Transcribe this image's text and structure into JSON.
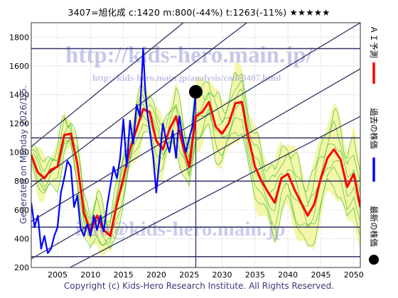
{
  "header": {
    "title": "3407=旭化成  c:1420  m:800(-44%)  t:1263(-11%)  ★★★★★"
  },
  "side_left": {
    "text": "Generated on Monday 2026/1/5."
  },
  "footer": {
    "copyright": "Copyright (c) Kids-Hero Research Institute. All Rights Reserved."
  },
  "watermarks": {
    "url": "http://kids-hero.main.jp/",
    "analysis": "http://kids-hero.main.jp/analysis/code3407.html",
    "email": "info@kids-hero.main.jp"
  },
  "legend": {
    "prediction": "ＡＩ予測",
    "past_price": "過去の株価",
    "latest_price": "最新の株価"
  },
  "colors": {
    "prediction": "#ff0000",
    "past_price": "#0000ff",
    "latest": "#000000",
    "band_fill": "#f2f59a",
    "band_lines": "#33bb33",
    "trend_lines": "#333366"
  },
  "chart_data": {
    "type": "line",
    "xlim": [
      2001,
      2051
    ],
    "ylim": [
      200,
      1900
    ],
    "x_ticks": [
      2005,
      2010,
      2015,
      2020,
      2025,
      2030,
      2035,
      2040,
      2045,
      2050
    ],
    "y_ticks": [
      200,
      400,
      600,
      800,
      1000,
      1200,
      1400,
      1600,
      1800
    ],
    "x_tick_labels": [
      "2005",
      "2010",
      "2015",
      "2020",
      "2025",
      "2030",
      "2035",
      "2040",
      "2045",
      "2050"
    ],
    "y_tick_labels": [
      "200",
      "400",
      "600",
      "800",
      "1000",
      "1200",
      "1400",
      "1600",
      "1800"
    ],
    "horizontal_levels": [
      1720,
      1100,
      800,
      480,
      275
    ],
    "current_year": 2026,
    "latest_point": {
      "x": 2026,
      "y": 1420
    },
    "past_price": {
      "x": [
        2001,
        2001.5,
        2002,
        2002.5,
        2003,
        2003.5,
        2004,
        2004.5,
        2005,
        2005.5,
        2006,
        2006.5,
        2007,
        2007.5,
        2008,
        2008.5,
        2009,
        2009.5,
        2010,
        2010.5,
        2011,
        2011.5,
        2012,
        2012.5,
        2013,
        2013.5,
        2014,
        2014.5,
        2015,
        2015.5,
        2016,
        2016.5,
        2017,
        2017.5,
        2018,
        2018.3,
        2018.6,
        2019,
        2019.5,
        2020,
        2020.5,
        2021,
        2021.5,
        2022,
        2022.5,
        2023,
        2023.5,
        2024,
        2024.5,
        2025,
        2025.5,
        2026
      ],
      "y": [
        650,
        480,
        560,
        330,
        420,
        300,
        330,
        420,
        480,
        720,
        820,
        940,
        900,
        620,
        700,
        470,
        420,
        500,
        420,
        560,
        460,
        560,
        450,
        620,
        760,
        900,
        820,
        960,
        1230,
        900,
        1220,
        1060,
        1330,
        1250,
        1720,
        1450,
        1280,
        1150,
        980,
        720,
        960,
        1200,
        1080,
        1000,
        1150,
        960,
        1250,
        1100,
        1000,
        1100,
        1180,
        1420
      ]
    },
    "prediction": {
      "x": [
        2001,
        2002,
        2003,
        2004,
        2005,
        2006,
        2007,
        2008,
        2009,
        2010,
        2011,
        2012,
        2013,
        2014,
        2015,
        2016,
        2017,
        2018,
        2019,
        2020,
        2021,
        2022,
        2023,
        2024,
        2025,
        2026,
        2027,
        2028,
        2029,
        2030,
        2031,
        2032,
        2033,
        2034,
        2035,
        2036,
        2037,
        2038,
        2039,
        2040,
        2041,
        2042,
        2043,
        2044,
        2045,
        2046,
        2047,
        2048,
        2049,
        2050,
        2051
      ],
      "y": [
        980,
        860,
        820,
        880,
        900,
        1120,
        1130,
        920,
        580,
        450,
        560,
        460,
        420,
        640,
        820,
        1020,
        1160,
        1300,
        1280,
        1080,
        1020,
        1160,
        1250,
        1050,
        900,
        1250,
        1280,
        1350,
        1180,
        1130,
        1200,
        1340,
        1350,
        1100,
        900,
        800,
        720,
        650,
        820,
        850,
        740,
        650,
        560,
        640,
        820,
        960,
        1020,
        950,
        760,
        850,
        620
      ]
    }
  }
}
